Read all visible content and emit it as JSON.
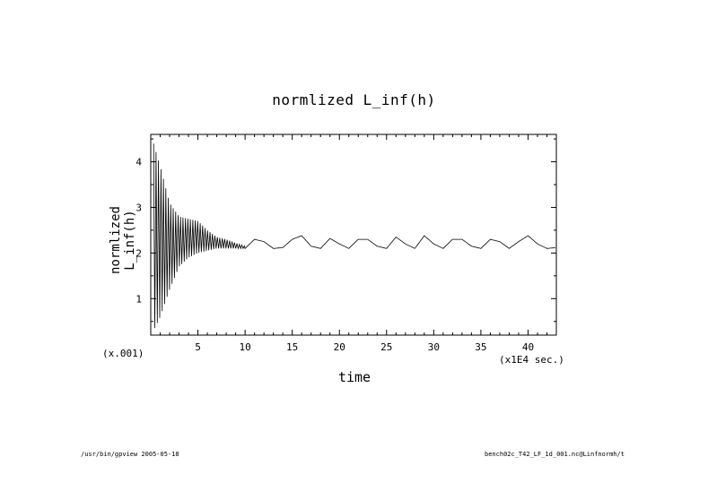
{
  "chart_data": {
    "type": "line",
    "title": "normlized L_inf(h)",
    "xlabel": "time",
    "ylabel": "normlized L_inf(h)",
    "x_units": "(x1E4 sec.)",
    "y_scale": "(x.001)",
    "xlim": [
      0,
      43
    ],
    "ylim": [
      0.2,
      4.6
    ],
    "xticks": [
      5,
      10,
      15,
      20,
      25,
      30,
      35,
      40
    ],
    "yticks": [
      1,
      2,
      3,
      4
    ],
    "series": [
      {
        "x": [
          0.3,
          0.6,
          1,
          2,
          3,
          4,
          5,
          6,
          7,
          8,
          9,
          10,
          11,
          12,
          13,
          14,
          15,
          16,
          17,
          18,
          19,
          20,
          21,
          22,
          23,
          24,
          25,
          26,
          27,
          28,
          29,
          30,
          31,
          32,
          33,
          34,
          35,
          36,
          37,
          38,
          39,
          40,
          41,
          42,
          43
        ],
        "y": [
          4.4,
          0.4,
          3.9,
          3.1,
          2.8,
          2.7,
          2.5,
          2.35,
          2.3,
          2.2,
          2.15,
          2.1,
          2.3,
          2.25,
          2.1,
          2.12,
          2.3,
          2.38,
          2.15,
          2.1,
          2.32,
          2.2,
          2.1,
          2.3,
          2.3,
          2.15,
          2.1,
          2.35,
          2.2,
          2.1,
          2.38,
          2.2,
          2.1,
          2.3,
          2.3,
          2.15,
          2.1,
          2.3,
          2.25,
          2.1,
          2.25,
          2.38,
          2.2,
          2.1,
          2.12
        ],
        "oscillation_envelope": {
          "x": [
            0.3,
            1,
            2,
            3,
            4,
            5,
            6,
            7,
            8,
            9,
            10
          ],
          "upper": [
            4.4,
            3.9,
            3.1,
            2.8,
            2.75,
            2.7,
            2.5,
            2.35,
            2.3,
            2.22,
            2.15
          ],
          "lower": [
            0.3,
            0.6,
            1.2,
            1.7,
            1.9,
            2.0,
            2.05,
            2.1,
            2.1,
            2.1,
            2.1
          ]
        }
      }
    ]
  },
  "footer": {
    "left": "/usr/bin/gpview  2005-05-18",
    "right": "bench02c_T42_LF_1d_001.nc@Linfnormh/t"
  }
}
